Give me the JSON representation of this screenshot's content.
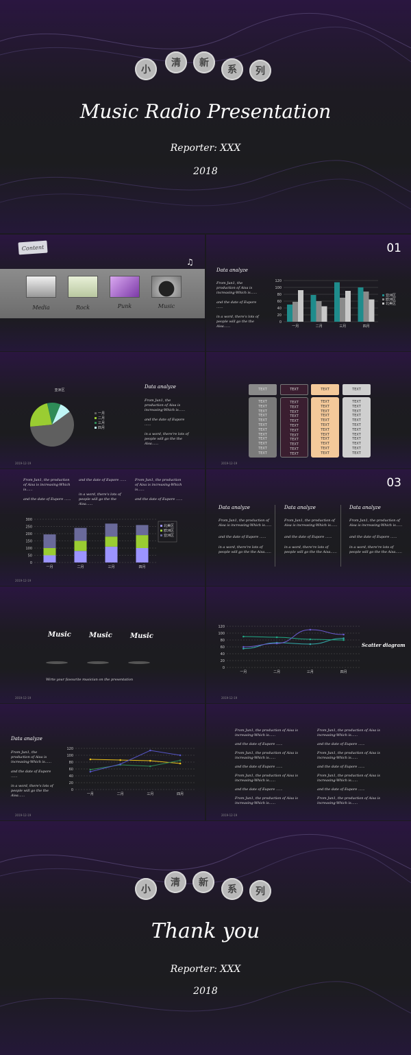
{
  "cover": {
    "circles": [
      "小",
      "清",
      "新",
      "系",
      "列"
    ],
    "title": "Music Radio Presentation",
    "reporter": "Reporter: XXX",
    "year": "2018"
  },
  "content_slide": {
    "badge": "Content",
    "items": [
      "Media",
      "Rock",
      "Punk",
      "Music"
    ]
  },
  "slide_01": {
    "number": "01",
    "heading": "Data analyze",
    "p1": "From Jun1, the production of Aisa is increasing-Which is......",
    "p2": "and the date of Eupore ......",
    "p3": "in a word, there's lots of people will go the the Aisa......"
  },
  "pie_slide": {
    "heading": "Data analyze",
    "p1": "From Jun1, the production of Aisa is increasing-Which is......",
    "p2": "and the date of Eupore ......",
    "p3": "in a word, there're lots of people will go the the Aisa......",
    "date": "2019-12-19"
  },
  "table_slide": {
    "headers": [
      "TEXT",
      "TEXT",
      "TEXT",
      "TEXT"
    ],
    "cell": "TEXT",
    "date": "2019-12-19"
  },
  "stack_slide": {
    "c1a": "From Jun1, the production of Aisa is increasing-Which is......",
    "c1b": "and the date of Eupore ......",
    "c2a": "and the date of Eupore ......",
    "c2b": "in a word, there's lots of people will go the the Aisa......",
    "c3a": "From Jun1, the production of Aisa is increasing-Which is......",
    "c3b": "and the date of Eupore ......",
    "date": "2019-12-19"
  },
  "slide_03": {
    "number": "03",
    "cols": [
      {
        "heading": "Data analyze",
        "p1": "From Jun1, the production of Aisa is increasing-Which is......",
        "p2": "and the date of Eupore ......",
        "p3": "in a word, there're lots of people will go the the Aisa......"
      },
      {
        "heading": "Data analyze",
        "p1": "From Jun1, the production of Aisa is increasing-Which is......",
        "p2": "and the date of Eupore ......",
        "p3": "in a word, there're lots of people will go the the Aisa......"
      },
      {
        "heading": "Data analyze",
        "p1": "From Jun1, the production of Aisa is increasing-Which is......",
        "p2": "and the date of Eupore ......",
        "p3": "in a word, there're lots of people will go the the Aisa......"
      }
    ]
  },
  "music_slide": {
    "labels": [
      "Music",
      "Music",
      "Music"
    ],
    "caption": "Wirte your favourite musician on the presentation",
    "date": "2019-12-19"
  },
  "scatter_slide": {
    "label": "Scatter diagram",
    "date": "2019-12-19"
  },
  "line_slide": {
    "heading": "Data analyze",
    "p1": "From Jun1, the production of Aisa is increasing-Which is......",
    "p2": "and the date of Eupore ......",
    "p3": "in a word, there's lots of people will go the the Aisa......",
    "date": "2019-12-19"
  },
  "text_slide": {
    "left": [
      "From Jun1, the production of Aisa is increasing-Which is......",
      "and the date of Eupore ......",
      "From Jun1, the production of Aisa is increasing-Which is......",
      "and the date of Eupore ......",
      "From Jun1, the production of Aisa is increasing-Which is......",
      "and the date of Eupore ......",
      "From Jun1, the production of Aisa is increasing-Which is......"
    ],
    "right": [
      "From Jun1, the production of Aisa is increasing-Which is......",
      "and the date of Eupore ......",
      "From Jun1, the production of Aisa is increasing-Which is......",
      "and the date of Eupore ......",
      "From Jun1, the production of Aisa is increasing-Which is......",
      "and the date of Eupore ......",
      "From Jun1, the production of Aisa is increasing-Which is......"
    ],
    "date": "2019-12-19"
  },
  "end": {
    "circles": [
      "小",
      "清",
      "新",
      "系",
      "列"
    ],
    "title": "Thank you",
    "reporter": "Reporter: XXX",
    "year": "2018"
  },
  "chart_data": [
    {
      "type": "bar",
      "categories": [
        "一月",
        "二月",
        "三月",
        "四月"
      ],
      "series": [
        {
          "name": "亚洲区",
          "values": [
            50,
            78,
            115,
            100
          ]
        },
        {
          "name": "欧洲区",
          "values": [
            58,
            60,
            70,
            88
          ]
        },
        {
          "name": "北美区",
          "values": [
            92,
            45,
            90,
            65
          ]
        }
      ],
      "ylim": [
        0,
        120
      ],
      "colors": [
        "#1f8c8c",
        "#8a8a8a",
        "#c8c8c8"
      ]
    },
    {
      "type": "pie",
      "title": "亚洲区",
      "categories": [
        "一月",
        "二月",
        "三月",
        "四月"
      ],
      "values": [
        8.2,
        3.2,
        1.4,
        1.2
      ],
      "legend": "right",
      "colors": [
        "#5f5f5f",
        "#9acd32",
        "#2e8b57",
        "#bff5f5"
      ]
    },
    {
      "type": "bar",
      "stacked": true,
      "categories": [
        "一月",
        "二月",
        "三月",
        "四月"
      ],
      "series": [
        {
          "name": "北美区",
          "values": [
            50,
            80,
            110,
            100
          ]
        },
        {
          "name": "欧洲区",
          "values": [
            50,
            70,
            70,
            90
          ]
        },
        {
          "name": "亚洲区",
          "values": [
            95,
            90,
            90,
            70
          ]
        }
      ],
      "ylim": [
        0,
        300
      ],
      "colors": [
        "#9c94ff",
        "#9acd32",
        "#6a6a9a"
      ]
    },
    {
      "type": "scatter",
      "categories": [
        "一月",
        "二月",
        "三月",
        "四月"
      ],
      "series": [
        {
          "values": [
            55,
            72,
            68,
            85
          ]
        },
        {
          "values": [
            90,
            88,
            82,
            80
          ]
        },
        {
          "values": [
            60,
            70,
            110,
            96
          ]
        }
      ],
      "ylim": [
        0,
        120
      ],
      "colors": [
        "#3aa",
        "#2a8",
        "#6a5acd"
      ]
    },
    {
      "type": "line",
      "categories": [
        "一月",
        "二月",
        "三月",
        "四月"
      ],
      "series": [
        {
          "values": [
            88,
            86,
            84,
            76
          ]
        },
        {
          "values": [
            58,
            72,
            68,
            85
          ]
        },
        {
          "values": [
            52,
            74,
            114,
            100
          ]
        }
      ],
      "ylim": [
        0,
        120
      ],
      "colors": [
        "#f0c419",
        "#2e8b57",
        "#5656c8"
      ]
    }
  ]
}
